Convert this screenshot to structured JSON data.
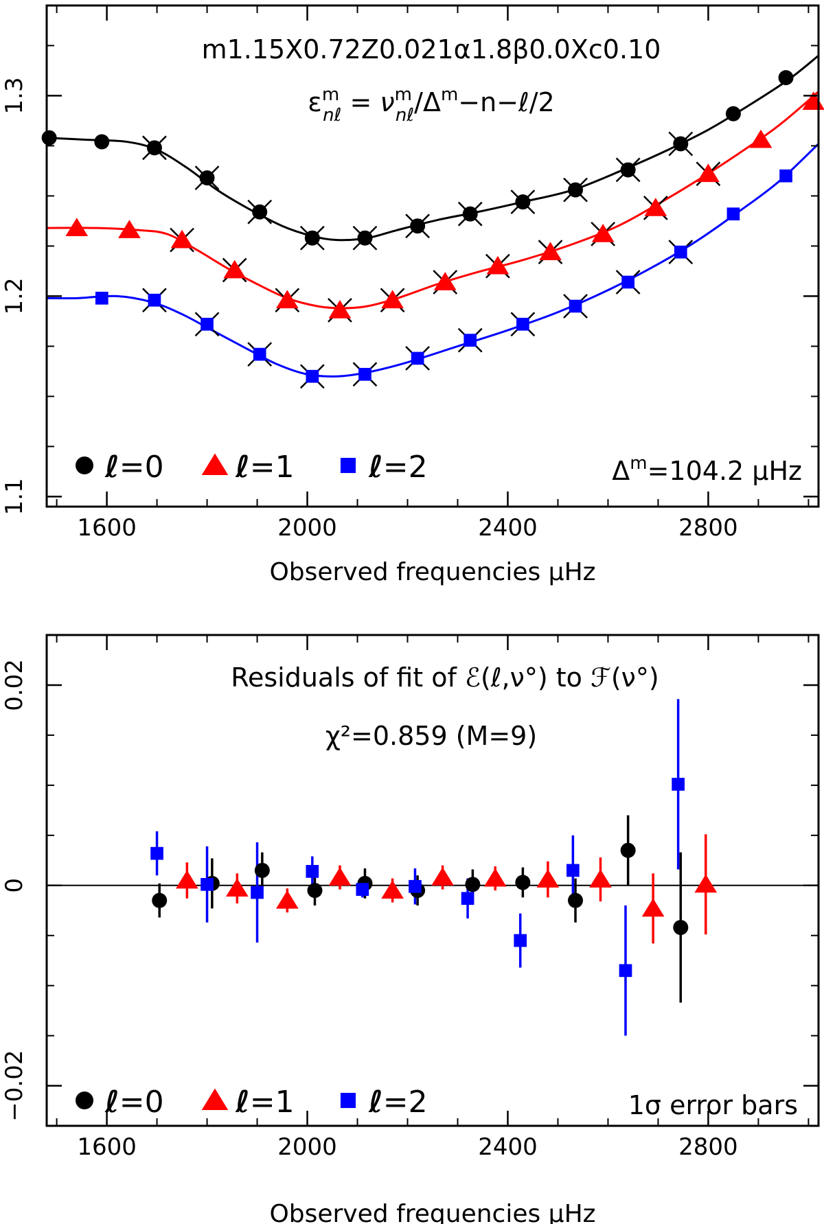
{
  "chart_data": [
    {
      "type": "line",
      "title": "m1.15X0.72Z0.021α1.8β0.0Xc0.10",
      "subtitle": "εⁿᵐₗ = νⁿᵐₗ/Δᵐ−n−ℓ/2",
      "subtitle_parts": {
        "eps": "ε",
        "sup_m": "m",
        "sub_nl": "nℓ",
        "eq": " = ",
        "nu": "ν",
        "rest": "/Δ",
        "rest_sup": "m",
        "tail": "−n−ℓ/2"
      },
      "xlabel": "Observed frequencies μHz",
      "ylabel": "",
      "xlim": [
        1480,
        3020
      ],
      "ylim": [
        1.095,
        1.345
      ],
      "xticks": [
        1600,
        2000,
        2400,
        2800
      ],
      "yticks": [
        1.1,
        1.2,
        1.3
      ],
      "ytick_labels": [
        "1.1",
        "1.2",
        "1.3"
      ],
      "annotation": {
        "delta": "Δ",
        "sup": "m",
        "text": "=104.2 μHz"
      },
      "series": [
        {
          "name": "ℓ=0",
          "color": "#000000",
          "marker": "circle",
          "x": [
            1485,
            1590,
            1695,
            1800,
            1905,
            2010,
            2115,
            2220,
            2325,
            2430,
            2535,
            2640,
            2745,
            2850,
            2955
          ],
          "y": [
            1.279,
            1.277,
            1.274,
            1.259,
            1.242,
            1.229,
            1.229,
            1.235,
            1.241,
            1.247,
            1.253,
            1.263,
            1.276,
            1.291,
            1.309
          ],
          "curve": [
            [
              1480,
              1.279
            ],
            [
              1560,
              1.278
            ],
            [
              1640,
              1.277
            ],
            [
              1700,
              1.273
            ],
            [
              1760,
              1.264
            ],
            [
              1820,
              1.253
            ],
            [
              1880,
              1.244
            ],
            [
              1950,
              1.235
            ],
            [
              2010,
              1.23
            ],
            [
              2060,
              1.228
            ],
            [
              2120,
              1.229
            ],
            [
              2180,
              1.233
            ],
            [
              2260,
              1.238
            ],
            [
              2340,
              1.242
            ],
            [
              2430,
              1.247
            ],
            [
              2530,
              1.253
            ],
            [
              2630,
              1.263
            ],
            [
              2720,
              1.273
            ],
            [
              2800,
              1.283
            ],
            [
              2880,
              1.295
            ],
            [
              2960,
              1.308
            ],
            [
              3020,
              1.32
            ]
          ]
        },
        {
          "name": "ℓ=1",
          "color": "#ff0000",
          "marker": "triangle",
          "x": [
            1540,
            1645,
            1750,
            1855,
            1960,
            2065,
            2170,
            2275,
            2380,
            2485,
            2590,
            2695,
            2800,
            2905,
            3010
          ],
          "y": [
            1.234,
            1.233,
            1.228,
            1.213,
            1.198,
            1.193,
            1.198,
            1.207,
            1.215,
            1.222,
            1.231,
            1.244,
            1.261,
            1.278,
            1.297
          ],
          "curve": [
            [
              1480,
              1.234
            ],
            [
              1580,
              1.234
            ],
            [
              1660,
              1.233
            ],
            [
              1720,
              1.231
            ],
            [
              1780,
              1.223
            ],
            [
              1840,
              1.214
            ],
            [
              1900,
              1.206
            ],
            [
              1960,
              1.199
            ],
            [
              2020,
              1.195
            ],
            [
              2070,
              1.194
            ],
            [
              2120,
              1.195
            ],
            [
              2180,
              1.199
            ],
            [
              2260,
              1.206
            ],
            [
              2340,
              1.212
            ],
            [
              2430,
              1.218
            ],
            [
              2530,
              1.226
            ],
            [
              2620,
              1.235
            ],
            [
              2700,
              1.246
            ],
            [
              2780,
              1.258
            ],
            [
              2860,
              1.271
            ],
            [
              2940,
              1.285
            ],
            [
              3020,
              1.302
            ]
          ]
        },
        {
          "name": "ℓ=2",
          "color": "#0000ff",
          "marker": "square",
          "x": [
            1590,
            1695,
            1800,
            1905,
            2010,
            2115,
            2220,
            2325,
            2430,
            2535,
            2640,
            2745,
            2850,
            2955
          ],
          "y": [
            1.199,
            1.198,
            1.186,
            1.171,
            1.16,
            1.161,
            1.169,
            1.178,
            1.186,
            1.195,
            1.207,
            1.222,
            1.241,
            1.26
          ],
          "curve": [
            [
              1480,
              1.199
            ],
            [
              1540,
              1.199
            ],
            [
              1620,
              1.2
            ],
            [
              1690,
              1.197
            ],
            [
              1750,
              1.191
            ],
            [
              1810,
              1.183
            ],
            [
              1870,
              1.175
            ],
            [
              1940,
              1.166
            ],
            [
              2000,
              1.161
            ],
            [
              2060,
              1.16
            ],
            [
              2120,
              1.162
            ],
            [
              2200,
              1.167
            ],
            [
              2300,
              1.175
            ],
            [
              2400,
              1.183
            ],
            [
              2500,
              1.192
            ],
            [
              2600,
              1.203
            ],
            [
              2700,
              1.216
            ],
            [
              2780,
              1.228
            ],
            [
              2860,
              1.242
            ],
            [
              2940,
              1.257
            ],
            [
              3020,
              1.276
            ]
          ]
        }
      ],
      "cross_marks_x": [
        1695,
        1750,
        1800,
        1855,
        1905,
        1960,
        2010,
        2065,
        2115,
        2170,
        2220,
        2275,
        2325,
        2380,
        2430,
        2485,
        2535,
        2590,
        2640,
        2695,
        2745,
        2800
      ],
      "legend": [
        {
          "label": "ℓ",
          "eq": "=0",
          "color": "#000000",
          "marker": "circle"
        },
        {
          "label": "ℓ",
          "eq": "=1",
          "color": "#ff0000",
          "marker": "triangle"
        },
        {
          "label": "ℓ",
          "eq": "=2",
          "color": "#0000ff",
          "marker": "square"
        }
      ],
      "legend_position": "bottom-left"
    },
    {
      "type": "scatter",
      "title": "Residuals of fit of ℰ(ℓ,ν°) to ℱ(ν°)",
      "subtitle": "χ²=0.859 (M=9)",
      "xlabel": "Observed frequencies μHz",
      "ylabel": "",
      "xlim": [
        1480,
        3020
      ],
      "ylim": [
        -0.024,
        0.025
      ],
      "xticks": [
        1600,
        2000,
        2400,
        2800
      ],
      "yticks": [
        -0.02,
        0,
        0.02
      ],
      "ytick_labels": [
        "−0.02",
        "0",
        "0.02"
      ],
      "annotation": "1σ error bars",
      "series": [
        {
          "name": "ℓ=0",
          "color": "#000000",
          "marker": "circle",
          "x": [
            1705,
            1810,
            1910,
            2015,
            2115,
            2220,
            2330,
            2430,
            2535,
            2640,
            2745
          ],
          "y": [
            -0.0015,
            0.0002,
            0.0015,
            -0.0005,
            0.0002,
            -0.0005,
            0.0001,
            0.0003,
            -0.0015,
            0.0035,
            -0.0042
          ],
          "err": [
            0.0017,
            0.0025,
            0.0018,
            0.0015,
            0.0015,
            0.0015,
            0.0015,
            0.0015,
            0.0022,
            0.0035,
            0.0075
          ]
        },
        {
          "name": "ℓ=1",
          "color": "#ff0000",
          "marker": "triangle",
          "x": [
            1760,
            1860,
            1960,
            2065,
            2170,
            2270,
            2375,
            2480,
            2585,
            2690,
            2795
          ],
          "y": [
            0.0005,
            -0.0003,
            -0.0015,
            0.0008,
            -0.0005,
            0.0008,
            0.0007,
            0.0006,
            0.0006,
            -0.0023,
            0.0001
          ],
          "err": [
            0.0018,
            0.0015,
            0.0012,
            0.0012,
            0.0012,
            0.0012,
            0.0012,
            0.0018,
            0.0022,
            0.0035,
            0.005
          ]
        },
        {
          "name": "ℓ=2",
          "color": "#0000ff",
          "marker": "square",
          "x": [
            1700,
            1800,
            1900,
            2010,
            2110,
            2215,
            2320,
            2425,
            2530,
            2635,
            2740
          ],
          "y": [
            0.0032,
            0.0001,
            -0.0007,
            0.0014,
            -0.0004,
            -0.0001,
            -0.0013,
            -0.0055,
            0.0015,
            -0.0085,
            0.0101
          ],
          "err": [
            0.0022,
            0.0038,
            0.005,
            0.0015,
            0.0008,
            0.0018,
            0.002,
            0.0027,
            0.0035,
            0.0065,
            0.0085
          ]
        }
      ],
      "legend": [
        {
          "label": "ℓ",
          "eq": "=0",
          "color": "#000000",
          "marker": "circle"
        },
        {
          "label": "ℓ",
          "eq": "=1",
          "color": "#ff0000",
          "marker": "triangle"
        },
        {
          "label": "ℓ",
          "eq": "=2",
          "color": "#0000ff",
          "marker": "square"
        }
      ],
      "legend_position": "bottom-left"
    }
  ]
}
